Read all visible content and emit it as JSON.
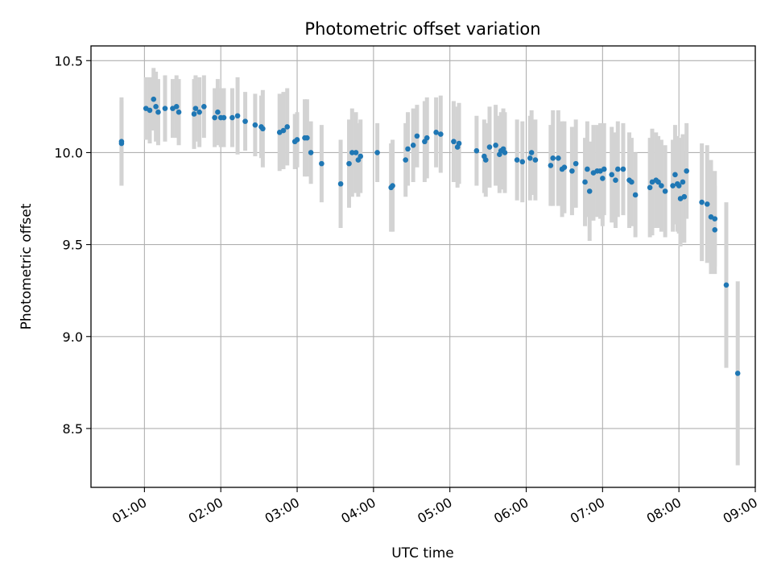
{
  "chart_data": {
    "type": "scatter",
    "title": "Photometric offset variation",
    "xlabel": "UTC time",
    "ylabel": "Photometric offset",
    "x_axis": {
      "unit": "hours_utc",
      "range": [
        0.3,
        9.0
      ],
      "ticks": [
        1,
        2,
        3,
        4,
        5,
        6,
        7,
        8,
        9
      ],
      "tick_labels": [
        "01:00",
        "02:00",
        "03:00",
        "04:00",
        "05:00",
        "06:00",
        "07:00",
        "08:00",
        "09:00"
      ]
    },
    "y_axis": {
      "range": [
        8.18,
        10.58
      ],
      "ticks": [
        8.5,
        9.0,
        9.5,
        10.0,
        10.5
      ],
      "tick_labels": [
        "8.5",
        "9.0",
        "9.5",
        "10.0",
        "10.5"
      ]
    },
    "grid": true,
    "colors": {
      "marker": "#1f77b4",
      "errorbar": "#d3d3d3",
      "grid": "#b0b0b0"
    },
    "points": [
      [
        0.7,
        10.05,
        0.23
      ],
      [
        0.7,
        10.06,
        0.24
      ],
      [
        1.02,
        10.24,
        0.17
      ],
      [
        1.07,
        10.23,
        0.18
      ],
      [
        1.12,
        10.29,
        0.17
      ],
      [
        1.15,
        10.25,
        0.19
      ],
      [
        1.18,
        10.22,
        0.18
      ],
      [
        1.27,
        10.24,
        0.18
      ],
      [
        1.37,
        10.24,
        0.16
      ],
      [
        1.42,
        10.25,
        0.17
      ],
      [
        1.45,
        10.22,
        0.18
      ],
      [
        1.65,
        10.21,
        0.19
      ],
      [
        1.67,
        10.24,
        0.18
      ],
      [
        1.72,
        10.22,
        0.19
      ],
      [
        1.78,
        10.25,
        0.17
      ],
      [
        1.92,
        10.19,
        0.16
      ],
      [
        1.96,
        10.22,
        0.18
      ],
      [
        2.0,
        10.19,
        0.16
      ],
      [
        2.04,
        10.19,
        0.16
      ],
      [
        2.15,
        10.19,
        0.16
      ],
      [
        2.22,
        10.2,
        0.21
      ],
      [
        2.32,
        10.17,
        0.16
      ],
      [
        2.45,
        10.15,
        0.17
      ],
      [
        2.53,
        10.14,
        0.17
      ],
      [
        2.55,
        10.13,
        0.21
      ],
      [
        2.77,
        10.11,
        0.21
      ],
      [
        2.82,
        10.12,
        0.21
      ],
      [
        2.87,
        10.14,
        0.21
      ],
      [
        2.97,
        10.06,
        0.15
      ],
      [
        3.0,
        10.07,
        0.15
      ],
      [
        3.1,
        10.08,
        0.21
      ],
      [
        3.13,
        10.08,
        0.21
      ],
      [
        3.18,
        10.0,
        0.17
      ],
      [
        3.32,
        9.94,
        0.21
      ],
      [
        3.57,
        9.83,
        0.24
      ],
      [
        3.68,
        9.94,
        0.24
      ],
      [
        3.72,
        10.0,
        0.24
      ],
      [
        3.77,
        10.0,
        0.22
      ],
      [
        3.8,
        9.96,
        0.2
      ],
      [
        3.83,
        9.98,
        0.2
      ],
      [
        4.05,
        10.0,
        0.16
      ],
      [
        4.23,
        9.81,
        0.24
      ],
      [
        4.25,
        9.82,
        0.25
      ],
      [
        4.42,
        9.96,
        0.2
      ],
      [
        4.45,
        10.02,
        0.2
      ],
      [
        4.52,
        10.04,
        0.2
      ],
      [
        4.57,
        10.09,
        0.17
      ],
      [
        4.67,
        10.06,
        0.22
      ],
      [
        4.7,
        10.08,
        0.22
      ],
      [
        4.82,
        10.11,
        0.19
      ],
      [
        4.88,
        10.1,
        0.21
      ],
      [
        5.05,
        10.06,
        0.22
      ],
      [
        5.1,
        10.03,
        0.22
      ],
      [
        5.12,
        10.05,
        0.22
      ],
      [
        5.35,
        10.01,
        0.19
      ],
      [
        5.45,
        9.98,
        0.2
      ],
      [
        5.47,
        9.96,
        0.2
      ],
      [
        5.52,
        10.03,
        0.22
      ],
      [
        5.6,
        10.04,
        0.22
      ],
      [
        5.65,
        9.99,
        0.21
      ],
      [
        5.67,
        10.01,
        0.21
      ],
      [
        5.7,
        10.02,
        0.22
      ],
      [
        5.72,
        10.0,
        0.22
      ],
      [
        5.88,
        9.96,
        0.22
      ],
      [
        5.95,
        9.95,
        0.22
      ],
      [
        6.05,
        9.97,
        0.23
      ],
      [
        6.07,
        10.0,
        0.23
      ],
      [
        6.12,
        9.96,
        0.22
      ],
      [
        6.32,
        9.93,
        0.22
      ],
      [
        6.35,
        9.97,
        0.26
      ],
      [
        6.42,
        9.97,
        0.26
      ],
      [
        6.47,
        9.91,
        0.26
      ],
      [
        6.5,
        9.92,
        0.25
      ],
      [
        6.6,
        9.9,
        0.24
      ],
      [
        6.65,
        9.94,
        0.24
      ],
      [
        6.77,
        9.84,
        0.24
      ],
      [
        6.8,
        9.91,
        0.26
      ],
      [
        6.83,
        9.79,
        0.27
      ],
      [
        6.88,
        9.89,
        0.26
      ],
      [
        6.93,
        9.9,
        0.25
      ],
      [
        6.97,
        9.9,
        0.26
      ],
      [
        7.0,
        9.86,
        0.26
      ],
      [
        7.02,
        9.91,
        0.25
      ],
      [
        7.12,
        9.88,
        0.26
      ],
      [
        7.17,
        9.85,
        0.26
      ],
      [
        7.2,
        9.91,
        0.26
      ],
      [
        7.27,
        9.91,
        0.25
      ],
      [
        7.35,
        9.85,
        0.26
      ],
      [
        7.38,
        9.84,
        0.24
      ],
      [
        7.43,
        9.77,
        0.23
      ],
      [
        7.62,
        9.81,
        0.27
      ],
      [
        7.65,
        9.84,
        0.29
      ],
      [
        7.7,
        9.85,
        0.26
      ],
      [
        7.73,
        9.84,
        0.25
      ],
      [
        7.77,
        9.82,
        0.25
      ],
      [
        7.82,
        9.79,
        0.25
      ],
      [
        7.92,
        9.82,
        0.25
      ],
      [
        7.95,
        9.88,
        0.27
      ],
      [
        7.98,
        9.83,
        0.26
      ],
      [
        8.0,
        9.82,
        0.26
      ],
      [
        8.02,
        9.75,
        0.26
      ],
      [
        8.05,
        9.84,
        0.26
      ],
      [
        8.07,
        9.76,
        0.25
      ],
      [
        8.1,
        9.9,
        0.26
      ],
      [
        8.3,
        9.73,
        0.32
      ],
      [
        8.37,
        9.72,
        0.32
      ],
      [
        8.42,
        9.65,
        0.31
      ],
      [
        8.47,
        9.64,
        0.26
      ],
      [
        8.47,
        9.58,
        0.24
      ],
      [
        8.62,
        9.28,
        0.45
      ],
      [
        8.77,
        8.8,
        0.5
      ]
    ]
  }
}
